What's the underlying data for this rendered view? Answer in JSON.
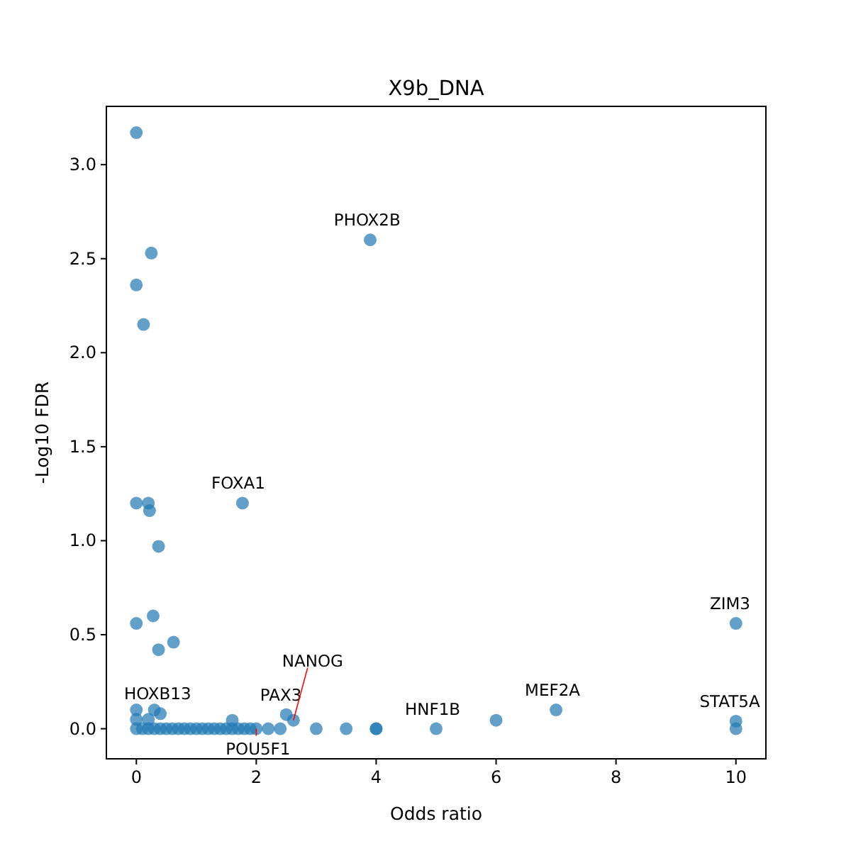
{
  "chart_data": {
    "type": "scatter",
    "title": "X9b_DNA",
    "xlabel": "Odds ratio",
    "ylabel": "-Log10 FDR",
    "xlim": [
      -0.5,
      10.5
    ],
    "ylim": [
      -0.16,
      3.31
    ],
    "xticks": [
      0,
      2,
      4,
      6,
      8,
      10
    ],
    "yticks": [
      {
        "value": 0,
        "label": "0.0"
      },
      {
        "value": 0.5,
        "label": "0.5"
      },
      {
        "value": 1,
        "label": "1.0"
      },
      {
        "value": 1.5,
        "label": "1.5"
      },
      {
        "value": 2,
        "label": "2.0"
      },
      {
        "value": 2.5,
        "label": "2.5"
      },
      {
        "value": 3,
        "label": "3.0"
      }
    ],
    "grid": false,
    "marker": "circle",
    "series": [
      {
        "color": "#1f77b4",
        "x": [
          0,
          0.25,
          0,
          0.12,
          3.9,
          0,
          0.2,
          0.22,
          1.77,
          0.37,
          0,
          0.28,
          0.37,
          0.62,
          10,
          7,
          5,
          6,
          10,
          10,
          2.5,
          2.62,
          3,
          3.5,
          4,
          4,
          1.6,
          0,
          0.3,
          0.4,
          0,
          0.2,
          0,
          0.1,
          0.2,
          0.3,
          0.4,
          0.5,
          0.6,
          0.7,
          0.8,
          0.9,
          1,
          1.1,
          1.2,
          1.3,
          1.4,
          1.5,
          1.6,
          1.7,
          1.8,
          1.9,
          2,
          2.2,
          2.4
        ],
        "values": [
          3.17,
          2.53,
          2.36,
          2.15,
          2.6,
          1.2,
          1.2,
          1.16,
          1.2,
          0.97,
          0.56,
          0.6,
          0.42,
          0.46,
          0.56,
          0.1,
          0,
          0.045,
          0.04,
          0,
          0.075,
          0.045,
          0,
          0,
          0,
          0,
          0.045,
          0.1,
          0.1,
          0.08,
          0.05,
          0.05,
          0,
          0,
          0,
          0,
          0,
          0,
          0,
          0,
          0,
          0,
          0,
          0,
          0,
          0,
          0,
          0,
          0,
          0,
          0,
          0,
          0,
          0,
          0
        ]
      }
    ],
    "annotations": [
      {
        "text": "PHOX2B",
        "x": 3.9,
        "y": 2.6
      },
      {
        "text": "FOXA1",
        "x": 1.77,
        "y": 1.2
      },
      {
        "text": "ZIM3",
        "x": 10,
        "y": 0.56
      },
      {
        "text": "MEF2A",
        "x": 7,
        "y": 0.1
      },
      {
        "text": "HNF1B",
        "x": 5,
        "y": 0
      },
      {
        "text": "STAT5A",
        "x": 10,
        "y": 0.04
      },
      {
        "text": "PAX3",
        "x": 2.5,
        "y": 0.075
      },
      {
        "text": "NANOG",
        "x": 2.62,
        "y": 0.045
      },
      {
        "text": "HOXB13",
        "x": 0.4,
        "y": 0.08
      },
      {
        "text": "POU5F1",
        "x": 2,
        "y": 0
      }
    ]
  }
}
